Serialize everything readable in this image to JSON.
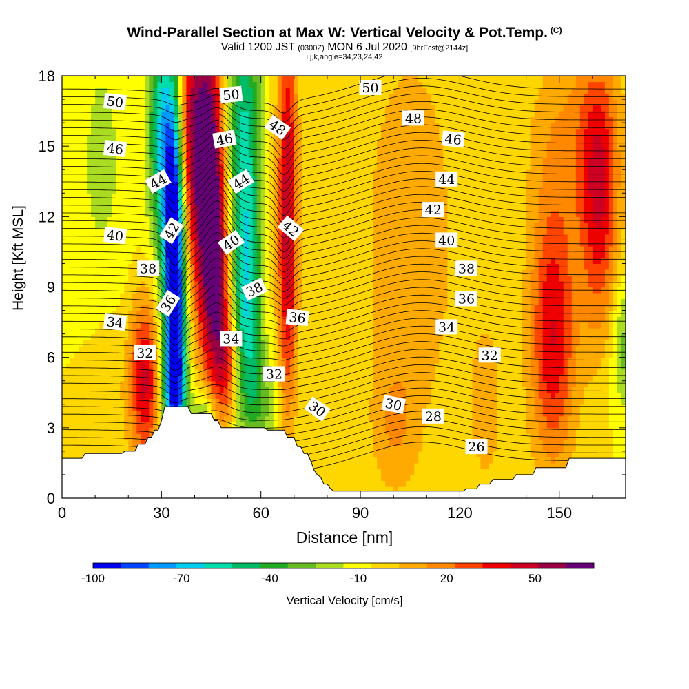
{
  "title": {
    "main": "Wind-Parallel Section at Max W: Vertical Velocity & Pot.Temp.",
    "copyright": "(C)",
    "valid_prefix": "Valid 1200 JST",
    "valid_zulu": "(0300Z)",
    "valid_date": "MON 6 Jul 2020",
    "forecast": "[9hrFcst@2144z]",
    "indices": "i,j,k,angle=34,23,24,42"
  },
  "chart_data": {
    "type": "heatmap",
    "title": "Wind-Parallel Section at Max W: Vertical Velocity & Pot.Temp.",
    "xlabel": "Distance [nm]",
    "ylabel": "Height [Kft MSL]",
    "xlim": [
      0,
      170
    ],
    "ylim": [
      0,
      18
    ],
    "x_ticks": [
      0,
      30,
      60,
      90,
      120,
      150
    ],
    "x_tick_labels": [
      "0",
      "30",
      "60",
      "90",
      "120",
      "150"
    ],
    "y_ticks": [
      0,
      3,
      6,
      9,
      12,
      15,
      18
    ],
    "y_tick_labels": [
      "0",
      "3",
      "6",
      "9",
      "12",
      "15",
      "18"
    ],
    "colorbar": {
      "label": "Vertical Velocity [cm/s]",
      "tick_values": [
        -100,
        -70,
        -40,
        -10,
        20,
        50
      ],
      "tick_labels": [
        "-100",
        "-70",
        "-40",
        "-10",
        "20",
        "50"
      ],
      "vmin": -100,
      "vmax": 70,
      "step": 10,
      "colors": [
        "#0000ee",
        "#0044ff",
        "#0099ff",
        "#00ccee",
        "#00ddaa",
        "#00bb66",
        "#22aa22",
        "#66bb22",
        "#aadd22",
        "#ffff00",
        "#ffd700",
        "#ffaa00",
        "#ff8800",
        "#ff4400",
        "#ee0000",
        "#cc0022",
        "#990044",
        "#660077"
      ]
    },
    "terrain": [
      [
        0,
        1.7
      ],
      [
        1,
        1.7
      ],
      [
        2,
        1.7
      ],
      [
        3,
        1.7
      ],
      [
        4,
        1.7
      ],
      [
        5,
        1.7
      ],
      [
        6,
        1.7
      ],
      [
        7,
        1.9
      ],
      [
        8,
        1.9
      ],
      [
        9,
        1.9
      ],
      [
        10,
        1.9
      ],
      [
        11,
        1.9
      ],
      [
        12,
        1.9
      ],
      [
        13,
        1.9
      ],
      [
        14,
        1.9
      ],
      [
        15,
        1.9
      ],
      [
        16,
        1.9
      ],
      [
        17,
        1.9
      ],
      [
        18,
        1.9
      ],
      [
        19,
        2
      ],
      [
        20,
        2
      ],
      [
        21,
        2
      ],
      [
        22,
        2
      ],
      [
        23,
        2.3
      ],
      [
        24,
        2.3
      ],
      [
        25,
        2.3
      ],
      [
        26,
        2.6
      ],
      [
        27,
        2.6
      ],
      [
        28,
        2.9
      ],
      [
        29,
        2.9
      ],
      [
        30,
        3.3
      ],
      [
        31,
        3.9
      ],
      [
        32,
        3.9
      ],
      [
        33,
        3.9
      ],
      [
        34,
        3.9
      ],
      [
        35,
        3.9
      ],
      [
        36,
        3.9
      ],
      [
        37,
        3.9
      ],
      [
        38,
        3.9
      ],
      [
        39,
        3.6
      ],
      [
        40,
        3.6
      ],
      [
        41,
        3.6
      ],
      [
        42,
        3.6
      ],
      [
        43,
        3.6
      ],
      [
        44,
        3.6
      ],
      [
        45,
        3.6
      ],
      [
        46,
        3.3
      ],
      [
        47,
        3.3
      ],
      [
        48,
        3
      ],
      [
        49,
        3
      ],
      [
        50,
        3
      ],
      [
        51,
        3
      ],
      [
        52,
        3
      ],
      [
        53,
        3
      ],
      [
        54,
        3
      ],
      [
        55,
        3
      ],
      [
        56,
        3
      ],
      [
        57,
        3
      ],
      [
        58,
        3
      ],
      [
        59,
        3
      ],
      [
        60,
        3
      ],
      [
        61,
        3
      ],
      [
        62,
        2.9
      ],
      [
        63,
        2.9
      ],
      [
        64,
        2.9
      ],
      [
        65,
        2.9
      ],
      [
        66,
        2.9
      ],
      [
        67,
        2.9
      ],
      [
        68,
        2.6
      ],
      [
        69,
        2.6
      ],
      [
        70,
        2.6
      ],
      [
        71,
        2.2
      ],
      [
        72,
        2.2
      ],
      [
        73,
        1.9
      ],
      [
        74,
        1.9
      ],
      [
        75,
        1.6
      ],
      [
        76,
        1.2
      ],
      [
        77,
        1
      ],
      [
        78,
        0.9
      ],
      [
        79,
        0.6
      ],
      [
        80,
        0.6
      ],
      [
        81,
        0.4
      ],
      [
        82,
        0.3
      ],
      [
        83,
        0.3
      ],
      [
        84,
        0.3
      ],
      [
        85,
        0.3
      ],
      [
        86,
        0.3
      ],
      [
        87,
        0.3
      ],
      [
        88,
        0.3
      ],
      [
        89,
        0.3
      ],
      [
        90,
        0.3
      ],
      [
        91,
        0.3
      ],
      [
        92,
        0.3
      ],
      [
        93,
        0.3
      ],
      [
        94,
        0.3
      ],
      [
        95,
        0.3
      ],
      [
        96,
        0.3
      ],
      [
        97,
        0.3
      ],
      [
        98,
        0.3
      ],
      [
        99,
        0.3
      ],
      [
        100,
        0.3
      ],
      [
        101,
        0.3
      ],
      [
        102,
        0.3
      ],
      [
        103,
        0.3
      ],
      [
        104,
        0.3
      ],
      [
        105,
        0.3
      ],
      [
        106,
        0.3
      ],
      [
        107,
        0.3
      ],
      [
        108,
        0.3
      ],
      [
        109,
        0.3
      ],
      [
        110,
        0.3
      ],
      [
        111,
        0.3
      ],
      [
        112,
        0.3
      ],
      [
        113,
        0.3
      ],
      [
        114,
        0.3
      ],
      [
        115,
        0.3
      ],
      [
        116,
        0.3
      ],
      [
        117,
        0.3
      ],
      [
        118,
        0.3
      ],
      [
        119,
        0.3
      ],
      [
        120,
        0.3
      ],
      [
        121,
        0.3
      ],
      [
        122,
        0.4
      ],
      [
        123,
        0.4
      ],
      [
        124,
        0.4
      ],
      [
        125,
        0.4
      ],
      [
        126,
        0.6
      ],
      [
        127,
        0.6
      ],
      [
        128,
        0.6
      ],
      [
        129,
        0.6
      ],
      [
        130,
        0.8
      ],
      [
        131,
        0.8
      ],
      [
        132,
        0.8
      ],
      [
        133,
        0.8
      ],
      [
        134,
        0.8
      ],
      [
        135,
        0.8
      ],
      [
        136,
        0.8
      ],
      [
        137,
        1
      ],
      [
        138,
        1
      ],
      [
        139,
        1
      ],
      [
        140,
        1
      ],
      [
        141,
        1
      ],
      [
        142,
        1
      ],
      [
        143,
        1.3
      ],
      [
        144,
        1.3
      ],
      [
        145,
        1.3
      ],
      [
        146,
        1.3
      ],
      [
        147,
        1.3
      ],
      [
        148,
        1.3
      ],
      [
        149,
        1.3
      ],
      [
        150,
        1.3
      ],
      [
        151,
        1.3
      ],
      [
        152,
        1.3
      ],
      [
        153,
        1.7
      ],
      [
        154,
        1.7
      ],
      [
        155,
        1.7
      ],
      [
        156,
        1.7
      ],
      [
        157,
        1.7
      ],
      [
        158,
        1.7
      ],
      [
        159,
        1.7
      ],
      [
        160,
        1.7
      ],
      [
        161,
        1.7
      ],
      [
        162,
        1.7
      ],
      [
        163,
        1.7
      ],
      [
        164,
        1.7
      ],
      [
        165,
        1.7
      ],
      [
        166,
        1.7
      ],
      [
        167,
        1.7
      ],
      [
        168,
        1.7
      ],
      [
        169,
        1.7
      ],
      [
        170,
        1.7
      ]
    ],
    "velocity_features": [
      {
        "x": 25,
        "y": 5.0,
        "sx": 3,
        "sy": 2.5,
        "w": 50
      },
      {
        "x": 34,
        "y": 10.5,
        "sx": 2.3,
        "sy": 5,
        "w": -120
      },
      {
        "x": 34,
        "y": 4.5,
        "sx": 2.5,
        "sy": 2,
        "w": -50
      },
      {
        "x": 30,
        "y": 15.5,
        "sx": 2.8,
        "sy": 3.5,
        "w": -55
      },
      {
        "x": 38,
        "y": 15.5,
        "sx": 3,
        "sy": 4,
        "w": 55
      },
      {
        "x": 44,
        "y": 14.0,
        "sx": 3,
        "sy": 5,
        "w": 80
      },
      {
        "x": 47,
        "y": 9.0,
        "sx": 2.8,
        "sy": 3.5,
        "w": 55
      },
      {
        "x": 50,
        "y": 5.5,
        "sx": 2.5,
        "sy": 1.5,
        "w": 30
      },
      {
        "x": 43,
        "y": 3.5,
        "sx": 2.5,
        "sy": 1,
        "w": -30
      },
      {
        "x": 55,
        "y": 14.5,
        "sx": 3.5,
        "sy": 5,
        "w": -55
      },
      {
        "x": 56,
        "y": 7.5,
        "sx": 3,
        "sy": 3,
        "w": -40
      },
      {
        "x": 68,
        "y": 12.0,
        "sx": 2.2,
        "sy": 6,
        "w": 60
      },
      {
        "x": 60,
        "y": 4.0,
        "sx": 4,
        "sy": 1.5,
        "w": -20
      },
      {
        "x": 105,
        "y": 11.0,
        "sx": 10,
        "sy": 6,
        "w": 20
      },
      {
        "x": 100,
        "y": 3.0,
        "sx": 5,
        "sy": 2,
        "w": 15
      },
      {
        "x": 128,
        "y": 4.0,
        "sx": 4,
        "sy": 3,
        "w": 15
      },
      {
        "x": 148,
        "y": 7.0,
        "sx": 5,
        "sy": 4,
        "w": 50
      },
      {
        "x": 162,
        "y": 12.5,
        "sx": 4,
        "sy": 4,
        "w": 45
      },
      {
        "x": 155,
        "y": 15.5,
        "sx": 10,
        "sy": 3,
        "w": 20
      },
      {
        "x": 170,
        "y": 6.5,
        "sx": 3,
        "sy": 2,
        "w": -25
      },
      {
        "x": 12,
        "y": 14.0,
        "sx": 7,
        "sy": 6,
        "w": -12
      },
      {
        "x": 15,
        "y": 5.0,
        "sx": 7,
        "sy": 3,
        "w": 10
      }
    ],
    "theta_contour_labels": [
      {
        "text": "50",
        "x": 16,
        "y": 16.9,
        "angle": -6
      },
      {
        "text": "46",
        "x": 16,
        "y": 14.9,
        "angle": -6
      },
      {
        "text": "44",
        "x": 29,
        "y": 13.5,
        "angle": 30
      },
      {
        "text": "42",
        "x": 33,
        "y": 11.4,
        "angle": 58
      },
      {
        "text": "40",
        "x": 16,
        "y": 11.2,
        "angle": -6
      },
      {
        "text": "38",
        "x": 26,
        "y": 9.8,
        "angle": 0
      },
      {
        "text": "36",
        "x": 32,
        "y": 8.3,
        "angle": 58
      },
      {
        "text": "34",
        "x": 16,
        "y": 7.5,
        "angle": -6
      },
      {
        "text": "32",
        "x": 25,
        "y": 6.2,
        "angle": 0
      },
      {
        "text": "50",
        "x": 51,
        "y": 17.2,
        "angle": 6
      },
      {
        "text": "46",
        "x": 49,
        "y": 15.3,
        "angle": 10
      },
      {
        "text": "44",
        "x": 54,
        "y": 13.5,
        "angle": 32
      },
      {
        "text": "40",
        "x": 51,
        "y": 10.9,
        "angle": 35
      },
      {
        "text": "38",
        "x": 58,
        "y": 8.9,
        "angle": 25
      },
      {
        "text": "34",
        "x": 51,
        "y": 6.8,
        "angle": 0
      },
      {
        "text": "48",
        "x": 65,
        "y": 15.8,
        "angle": -35
      },
      {
        "text": "42",
        "x": 69,
        "y": 11.5,
        "angle": -40
      },
      {
        "text": "36",
        "x": 71,
        "y": 7.7,
        "angle": -5
      },
      {
        "text": "32",
        "x": 64,
        "y": 5.3,
        "angle": 0
      },
      {
        "text": "30",
        "x": 77,
        "y": 3.8,
        "angle": -35
      },
      {
        "text": "50",
        "x": 93,
        "y": 17.5,
        "angle": 0
      },
      {
        "text": "48",
        "x": 106,
        "y": 16.2,
        "angle": 0
      },
      {
        "text": "46",
        "x": 118,
        "y": 15.3,
        "angle": -6
      },
      {
        "text": "44",
        "x": 116,
        "y": 13.6,
        "angle": 0
      },
      {
        "text": "42",
        "x": 112,
        "y": 12.3,
        "angle": 0
      },
      {
        "text": "40",
        "x": 116,
        "y": 11.0,
        "angle": 0
      },
      {
        "text": "38",
        "x": 122,
        "y": 9.8,
        "angle": 0
      },
      {
        "text": "36",
        "x": 122,
        "y": 8.5,
        "angle": 0
      },
      {
        "text": "34",
        "x": 116,
        "y": 7.3,
        "angle": 0
      },
      {
        "text": "32",
        "x": 129,
        "y": 6.1,
        "angle": 0
      },
      {
        "text": "30",
        "x": 100,
        "y": 4.0,
        "angle": -12
      },
      {
        "text": "28",
        "x": 112,
        "y": 3.5,
        "angle": 0
      },
      {
        "text": "26",
        "x": 125,
        "y": 2.2,
        "angle": 0
      }
    ]
  }
}
